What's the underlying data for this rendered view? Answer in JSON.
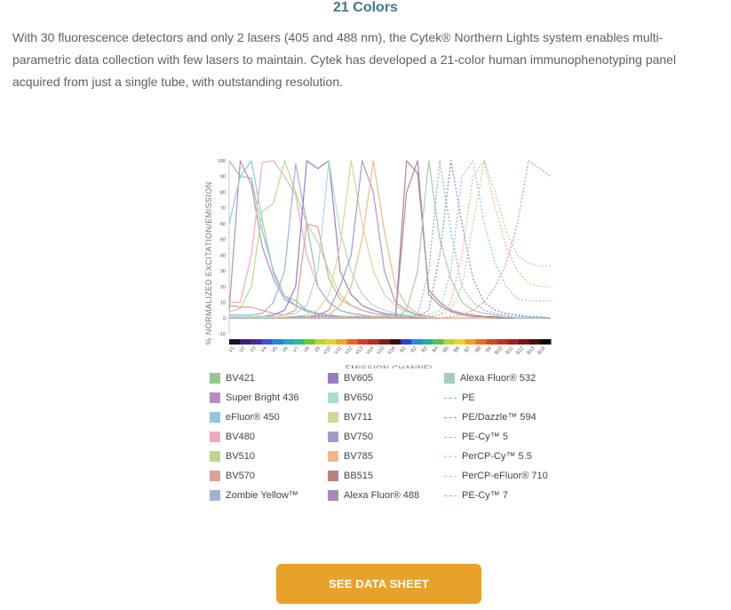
{
  "heading": "21 Colors",
  "intro": "With 30 fluorescence detectors and only 2 lasers (405 and 488 nm), the Cytek® Northern Lights system enables multi-parametric data collection with few lasers to maintain. Cytek has developed a 21-color human immunophenotyping panel acquired from just a single tube, with outstanding resolution.",
  "button_label": "SEE DATA SHEET",
  "chart_data": {
    "type": "line",
    "title": "",
    "xlabel": "EMISSION CHANNEL",
    "ylabel": "% NORMALIZED EXCITATION/EMISSION",
    "ylim": [
      -10,
      100
    ],
    "yticks": [
      -10,
      0,
      10,
      20,
      30,
      40,
      50,
      60,
      70,
      80,
      90,
      100
    ],
    "categories": [
      "V1",
      "V2",
      "V3",
      "V4",
      "V5",
      "V6",
      "V7",
      "V8",
      "V9",
      "V10",
      "V11",
      "V12",
      "V13",
      "V14",
      "V15",
      "V16",
      "B1",
      "B2",
      "B3",
      "B4",
      "B5",
      "B6",
      "B7",
      "B8",
      "B9",
      "B10",
      "B11",
      "B12",
      "B13",
      "B14"
    ],
    "band_colors": [
      "#1a0f2b",
      "#3b1d72",
      "#4d2a9c",
      "#3d4fd0",
      "#2a7fd8",
      "#22a7c4",
      "#2cbf84",
      "#6cc93a",
      "#b9d630",
      "#e8d52a",
      "#f0a726",
      "#e8671f",
      "#d83b1e",
      "#b72a22",
      "#7f1d1d",
      "#3a0d0d",
      "#2a3fd0",
      "#2a8ad8",
      "#22b0a0",
      "#55c44a",
      "#b5d43a",
      "#f0d22a",
      "#f0a426",
      "#e8701f",
      "#d9451e",
      "#c3301f",
      "#a01f1f",
      "#781414",
      "#4a0b0b",
      "#1a0505"
    ],
    "legend_placement": "bottom",
    "series": [
      {
        "name": "BV421",
        "color": "#8fc98f",
        "dashed": false,
        "values": [
          100,
          90,
          89,
          55,
          30,
          14,
          11,
          5,
          3,
          2,
          1,
          1,
          1,
          0,
          0,
          0,
          0,
          0,
          0,
          0,
          0,
          0,
          0,
          0,
          0,
          0,
          0,
          0,
          0,
          0
        ]
      },
      {
        "name": "Super Bright 436",
        "color": "#b98cc2",
        "dashed": false,
        "values": [
          5,
          100,
          85,
          45,
          25,
          12,
          8,
          5,
          3,
          2,
          1,
          1,
          1,
          0,
          0,
          0,
          0,
          0,
          0,
          0,
          0,
          0,
          0,
          0,
          0,
          0,
          0,
          0,
          0,
          0
        ]
      },
      {
        "name": "eFluor® 450",
        "color": "#8ec8e0",
        "dashed": false,
        "values": [
          60,
          90,
          100,
          62,
          28,
          14,
          8,
          4,
          2,
          1,
          1,
          1,
          0,
          0,
          0,
          0,
          0,
          0,
          0,
          0,
          0,
          0,
          0,
          0,
          0,
          0,
          0,
          0,
          0,
          0
        ]
      },
      {
        "name": "BV480",
        "color": "#f0a8c4",
        "dashed": false,
        "values": [
          10,
          10,
          40,
          99,
          100,
          90,
          78,
          40,
          20,
          10,
          5,
          3,
          2,
          1,
          1,
          0,
          0,
          0,
          0,
          0,
          0,
          0,
          0,
          0,
          0,
          0,
          0,
          0,
          0,
          0
        ]
      },
      {
        "name": "BV510",
        "color": "#b8d98c",
        "dashed": false,
        "values": [
          4,
          6,
          20,
          68,
          73,
          100,
          80,
          60,
          48,
          30,
          15,
          8,
          5,
          3,
          2,
          1,
          0,
          0,
          0,
          0,
          0,
          0,
          0,
          0,
          0,
          0,
          0,
          0,
          0,
          0
        ]
      },
      {
        "name": "BV570",
        "color": "#d9a19a",
        "dashed": false,
        "values": [
          8,
          7,
          7,
          5,
          3,
          2,
          5,
          60,
          58,
          25,
          12,
          8,
          5,
          3,
          2,
          1,
          0,
          0,
          0,
          0,
          0,
          0,
          0,
          0,
          0,
          0,
          0,
          0,
          0,
          0
        ]
      },
      {
        "name": "Zombie Yellow™",
        "color": "#9fb3d1",
        "dashed": false,
        "values": [
          2,
          2,
          2,
          3,
          10,
          30,
          98,
          60,
          20,
          10,
          5,
          3,
          2,
          1,
          1,
          0,
          0,
          0,
          0,
          0,
          0,
          0,
          0,
          0,
          0,
          0,
          0,
          0,
          0,
          0
        ]
      },
      {
        "name": "BV605",
        "color": "#9a7cbf",
        "dashed": false,
        "values": [
          1,
          1,
          1,
          1,
          2,
          5,
          20,
          100,
          95,
          100,
          30,
          15,
          8,
          5,
          3,
          2,
          1,
          0,
          0,
          0,
          0,
          0,
          0,
          0,
          0,
          0,
          0,
          0,
          0,
          0
        ]
      },
      {
        "name": "BV650",
        "color": "#a9dcd0",
        "dashed": false,
        "values": [
          1,
          1,
          1,
          1,
          1,
          2,
          3,
          8,
          30,
          100,
          55,
          30,
          15,
          8,
          5,
          3,
          2,
          1,
          0,
          0,
          0,
          0,
          0,
          0,
          0,
          0,
          0,
          0,
          0,
          0
        ]
      },
      {
        "name": "BV711",
        "color": "#d6d69a",
        "dashed": false,
        "values": [
          0,
          0,
          0,
          0,
          0,
          1,
          1,
          2,
          5,
          15,
          45,
          100,
          60,
          30,
          15,
          8,
          4,
          2,
          1,
          0,
          0,
          0,
          0,
          0,
          0,
          0,
          0,
          0,
          0,
          0
        ]
      },
      {
        "name": "BV750",
        "color": "#a898cc",
        "dashed": false,
        "values": [
          0,
          0,
          0,
          0,
          0,
          0,
          1,
          1,
          2,
          5,
          20,
          40,
          100,
          80,
          30,
          10,
          5,
          2,
          1,
          0,
          0,
          0,
          0,
          0,
          0,
          0,
          0,
          0,
          0,
          0
        ]
      },
      {
        "name": "BV785",
        "color": "#f0b88c",
        "dashed": false,
        "values": [
          0,
          0,
          0,
          0,
          0,
          0,
          0,
          1,
          1,
          2,
          8,
          20,
          50,
          100,
          55,
          20,
          8,
          3,
          1,
          0,
          0,
          0,
          0,
          0,
          0,
          0,
          0,
          0,
          0,
          0
        ]
      },
      {
        "name": "BB515",
        "color": "#b5837c",
        "dashed": false,
        "values": [
          0,
          0,
          0,
          0,
          0,
          0,
          0,
          0,
          0,
          0,
          0,
          0,
          0,
          0,
          0,
          0,
          100,
          92,
          18,
          10,
          5,
          3,
          2,
          1,
          1,
          0,
          0,
          0,
          0,
          0
        ]
      },
      {
        "name": "Alexa Fluor® 488",
        "color": "#a88ab5",
        "dashed": false,
        "values": [
          0,
          0,
          0,
          0,
          0,
          0,
          0,
          0,
          0,
          0,
          0,
          0,
          0,
          0,
          0,
          0,
          80,
          100,
          15,
          8,
          4,
          2,
          1,
          1,
          0,
          0,
          0,
          0,
          0,
          0
        ]
      },
      {
        "name": "Alexa Fluor® 532",
        "color": "#a6cdb3",
        "dashed": false,
        "values": [
          0,
          0,
          0,
          0,
          0,
          0,
          0,
          0,
          0,
          0,
          0,
          0,
          0,
          0,
          0,
          0,
          5,
          30,
          100,
          50,
          25,
          10,
          5,
          3,
          2,
          1,
          0,
          0,
          0,
          0
        ]
      },
      {
        "name": "PE",
        "color": "#8ab0cc",
        "dashed": true,
        "values": [
          0,
          0,
          0,
          0,
          0,
          0,
          1,
          1,
          1,
          1,
          1,
          1,
          1,
          1,
          1,
          1,
          1,
          2,
          30,
          100,
          55,
          20,
          10,
          5,
          3,
          2,
          1,
          1,
          0,
          0
        ]
      },
      {
        "name": "PE/Dazzle™ 594",
        "color": "#8a86c8",
        "dashed": true,
        "values": [
          0,
          0,
          0,
          0,
          0,
          0,
          0,
          0,
          1,
          1,
          1,
          1,
          1,
          1,
          1,
          1,
          1,
          1,
          5,
          40,
          100,
          60,
          25,
          10,
          5,
          3,
          2,
          1,
          1,
          0
        ]
      },
      {
        "name": "PE-Cy™ 5",
        "color": "#8ec4e6",
        "dashed": true,
        "values": [
          0,
          0,
          0,
          0,
          0,
          0,
          0,
          0,
          0,
          0,
          1,
          1,
          1,
          1,
          1,
          1,
          1,
          1,
          2,
          5,
          30,
          90,
          100,
          60,
          35,
          20,
          12,
          11,
          11,
          11
        ]
      },
      {
        "name": "PerCP-Cy™ 5.5",
        "color": "#f2b088",
        "dashed": true,
        "values": [
          0,
          0,
          0,
          0,
          0,
          0,
          0,
          0,
          0,
          0,
          1,
          1,
          1,
          1,
          1,
          1,
          1,
          1,
          1,
          2,
          10,
          40,
          90,
          100,
          70,
          45,
          30,
          22,
          20,
          20
        ]
      },
      {
        "name": "PerCP-eFluor® 710",
        "color": "#b8cf8e",
        "dashed": true,
        "values": [
          0,
          0,
          0,
          0,
          0,
          0,
          0,
          0,
          0,
          0,
          1,
          1,
          1,
          1,
          1,
          1,
          1,
          1,
          1,
          2,
          5,
          20,
          60,
          100,
          80,
          55,
          40,
          35,
          33,
          33
        ]
      },
      {
        "name": "PE-Cy™ 7",
        "color": "#ec8b8b",
        "dashed": true,
        "values": [
          0,
          0,
          0,
          0,
          0,
          0,
          0,
          0,
          0,
          0,
          0,
          0,
          0,
          0,
          0,
          0,
          0,
          0,
          0,
          0,
          1,
          2,
          5,
          10,
          20,
          35,
          60,
          100,
          95,
          90
        ]
      }
    ]
  }
}
